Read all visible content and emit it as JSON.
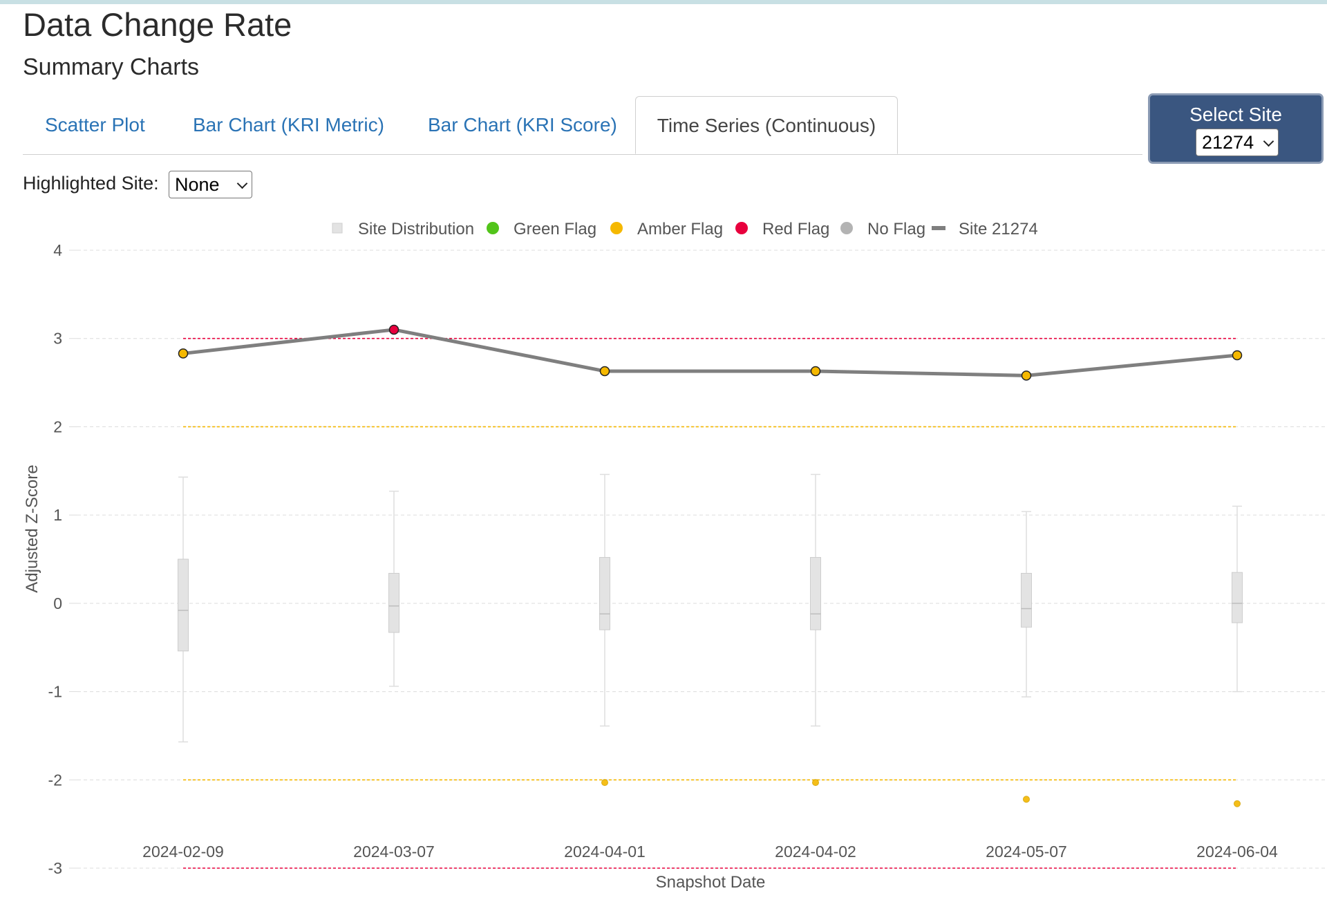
{
  "page": {
    "title": "Data Change Rate",
    "subtitle": "Summary Charts"
  },
  "tabs": [
    {
      "label": "Scatter Plot",
      "active": false
    },
    {
      "label": "Bar Chart (KRI Metric)",
      "active": false
    },
    {
      "label": "Bar Chart (KRI Score)",
      "active": false
    },
    {
      "label": "Time Series (Continuous)",
      "active": true
    }
  ],
  "site_selector": {
    "label": "Select Site",
    "value": "21274"
  },
  "highlight": {
    "label": "Highlighted Site:",
    "value": "None"
  },
  "colors": {
    "tab_link": "#2a73b5",
    "site_box": "#3a5680",
    "green": "#52c41a",
    "amber": "#f5b800",
    "red": "#e8003d",
    "no_flag": "#b3b3b3",
    "site_line": "#7f7f7f",
    "box": "#e3e3e3"
  },
  "chart_data": {
    "type": "line",
    "xlabel": "Snapshot Date",
    "ylabel": "Adjusted Z-Score",
    "ylim": [
      -3,
      4
    ],
    "yticks": [
      4,
      3,
      2,
      1,
      0,
      -1,
      -2,
      -3
    ],
    "grid": true,
    "legend_position": "top-center",
    "legend": [
      {
        "label": "Site Distribution",
        "symbol": "box"
      },
      {
        "label": "Green Flag",
        "symbol": "dot",
        "color": "#52c41a"
      },
      {
        "label": "Amber Flag",
        "symbol": "dot",
        "color": "#f5b800"
      },
      {
        "label": "Red Flag",
        "symbol": "dot",
        "color": "#e8003d"
      },
      {
        "label": "No Flag",
        "symbol": "dot",
        "color": "#b3b3b3"
      },
      {
        "label": "Site 21274",
        "symbol": "line",
        "color": "#7f7f7f"
      }
    ],
    "x": [
      "2024-02-09",
      "2024-03-07",
      "2024-04-01",
      "2024-04-02",
      "2024-05-07",
      "2024-06-04"
    ],
    "thresholds": [
      {
        "value": 3,
        "color": "#e8003d"
      },
      {
        "value": 2,
        "color": "#f5b800"
      },
      {
        "value": -2,
        "color": "#f5b800"
      },
      {
        "value": -3,
        "color": "#e8003d"
      }
    ],
    "boxes": [
      {
        "min": -1.57,
        "q1": -0.54,
        "median": -0.08,
        "q3": 0.5,
        "max": 1.43
      },
      {
        "min": -0.94,
        "q1": -0.33,
        "median": -0.03,
        "q3": 0.34,
        "max": 1.27
      },
      {
        "min": -1.39,
        "q1": -0.3,
        "median": -0.12,
        "q3": 0.52,
        "max": 1.46
      },
      {
        "min": -1.39,
        "q1": -0.3,
        "median": -0.12,
        "q3": 0.52,
        "max": 1.46
      },
      {
        "min": -1.06,
        "q1": -0.27,
        "median": -0.06,
        "q3": 0.34,
        "max": 1.04
      },
      {
        "min": -1.0,
        "q1": -0.22,
        "median": 0.0,
        "q3": 0.35,
        "max": 1.1
      }
    ],
    "outliers": [
      {
        "x": "2024-04-01",
        "y": -2.03,
        "flag": "amber"
      },
      {
        "x": "2024-04-02",
        "y": -2.03,
        "flag": "amber"
      },
      {
        "x": "2024-05-07",
        "y": -2.22,
        "flag": "amber"
      },
      {
        "x": "2024-06-04",
        "y": -2.27,
        "flag": "amber"
      }
    ],
    "series": [
      {
        "name": "Site 21274",
        "values": [
          2.83,
          3.1,
          2.63,
          2.63,
          2.58,
          2.81
        ],
        "flags": [
          "amber",
          "red",
          "amber",
          "amber",
          "amber",
          "amber"
        ]
      }
    ]
  }
}
